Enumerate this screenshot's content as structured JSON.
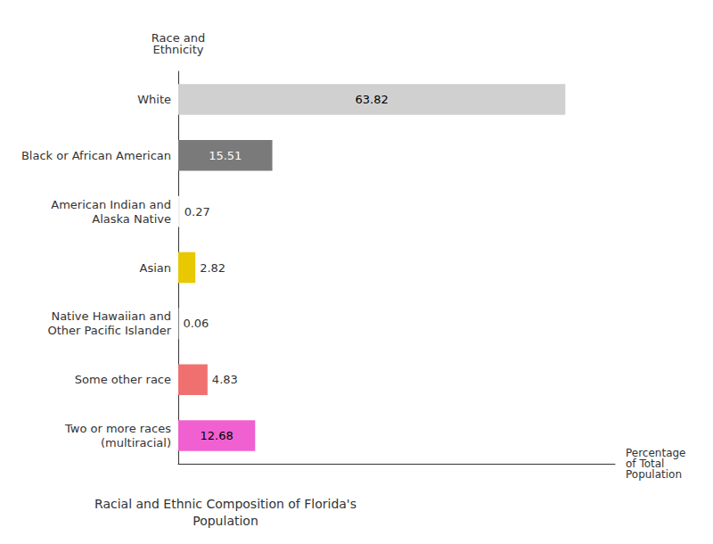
{
  "chart_data": {
    "type": "bar",
    "orientation": "horizontal",
    "title": "Racial and Ethnic Composition of Florida's\nPopulation",
    "xlabel": "Percentage\nof Total\nPopulation",
    "ylabel": "Race and\nEthnicity",
    "categories": [
      "White",
      "Black or African American",
      "American Indian and\nAlaska Native",
      "Asian",
      "Native Hawaiian and\nOther Pacific Islander",
      "Some other race",
      "Two or more races\n(multiracial)"
    ],
    "values": [
      63.82,
      15.51,
      0.27,
      2.82,
      0.06,
      4.83,
      12.68
    ],
    "colors": [
      "#d0d0d0",
      "#7a7a7a",
      "#f0f0f0",
      "#e8c800",
      "#f0f0f0",
      "#f07070",
      "#f060d0"
    ],
    "xlim": [
      0,
      72
    ],
    "xticks": [],
    "tick_labels": "y",
    "grid": false,
    "data_labels": true
  }
}
